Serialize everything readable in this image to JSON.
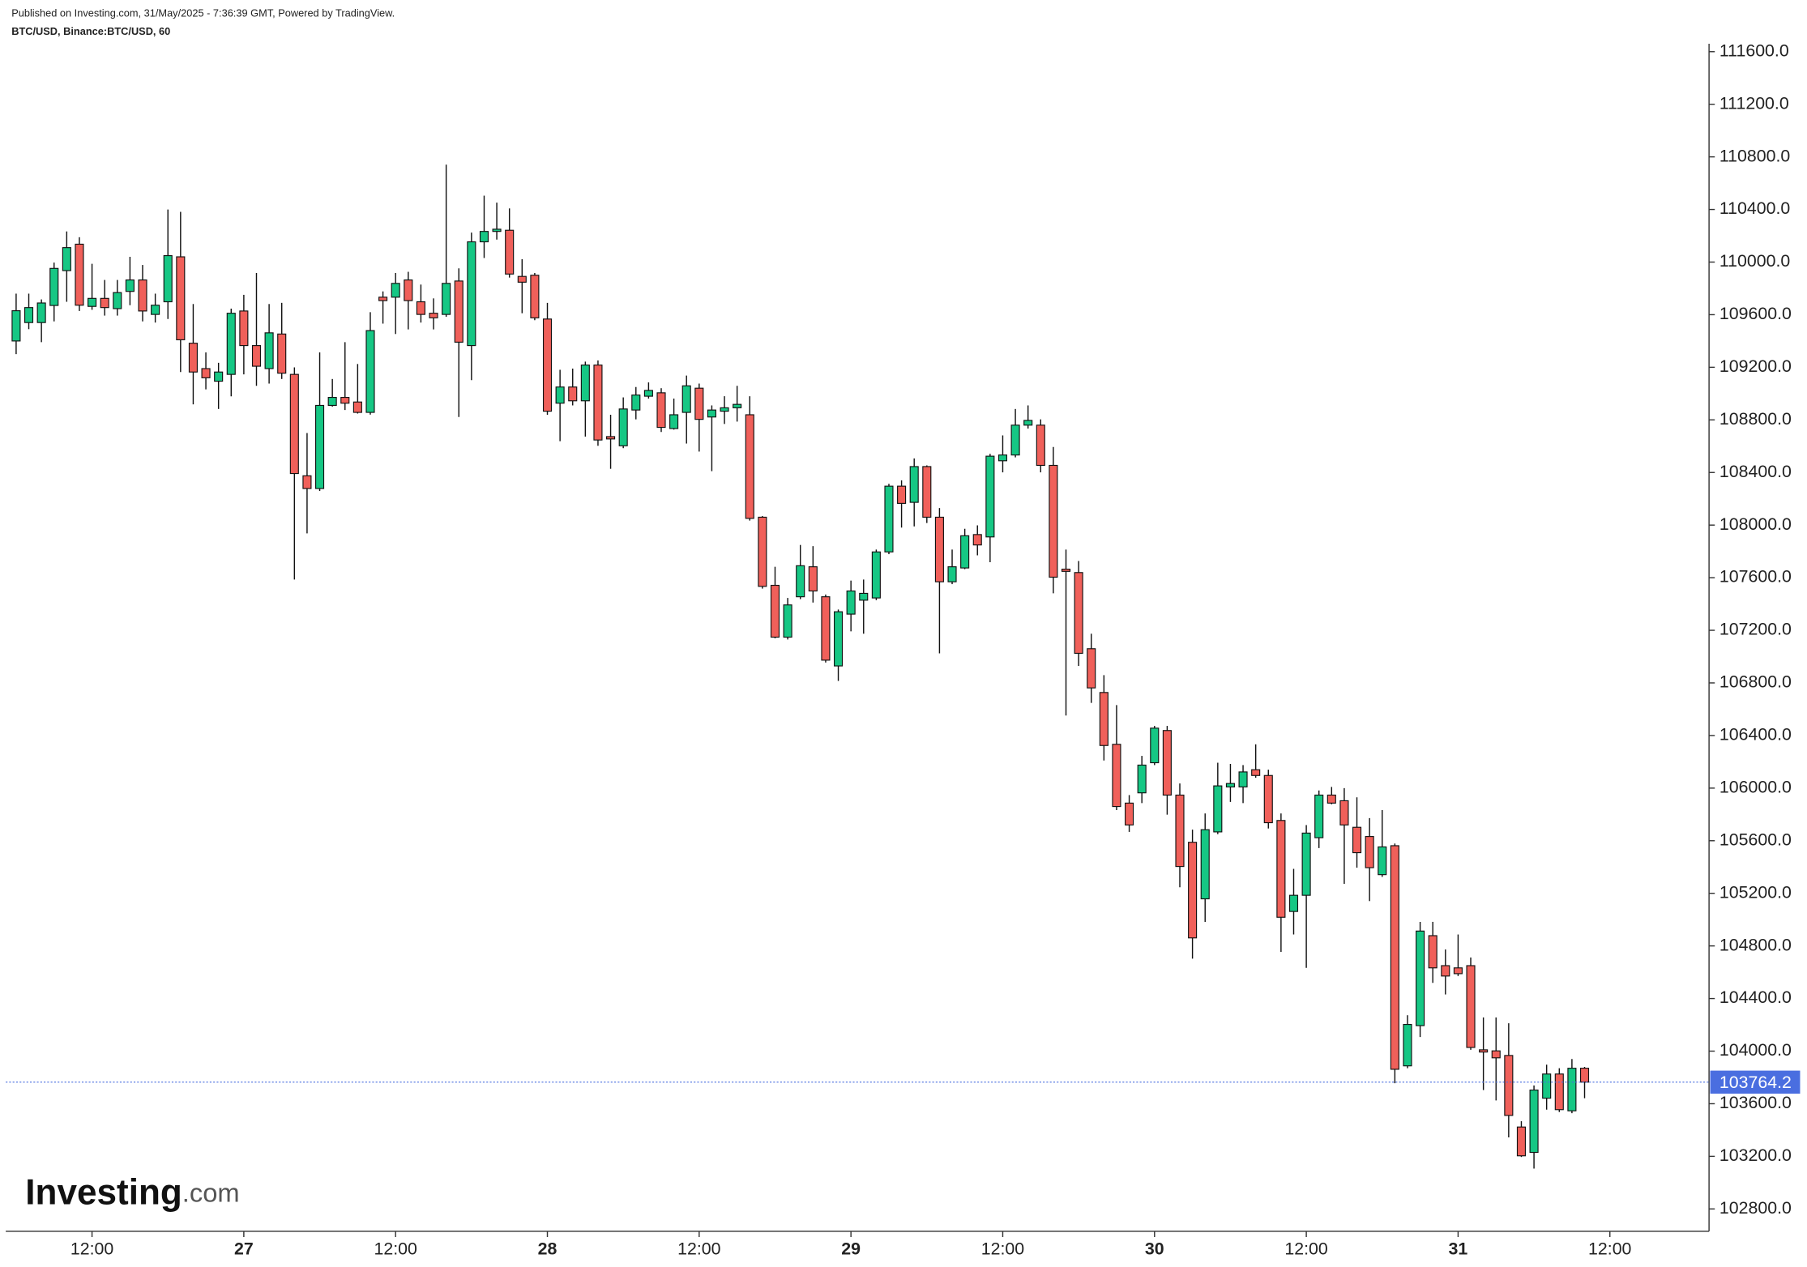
{
  "chart_data": {
    "type": "candlestick",
    "subtitle": "Published on Investing.com, 31/May/2025 - 7:36:39 GMT, Powered by TradingView.",
    "title": "BTC/USD, Binance:BTC/USD, 60",
    "up_color": "#16c784",
    "down_color": "#f0605a",
    "last_price_color": "#4a6ee0",
    "open": [
      109400,
      109540,
      109540,
      109670,
      109935,
      110136,
      109663,
      109724,
      109646,
      109777,
      109864,
      109602,
      109698,
      110040,
      109383,
      109190,
      109094,
      109146,
      109628,
      109365,
      109190,
      109453,
      109146,
      108375,
      108278,
      108910,
      108971,
      108936,
      108857,
      109733,
      109733,
      109864,
      109698,
      109611,
      109602,
      109856,
      109365,
      110154,
      110233,
      110242,
      109891,
      109900,
      109567,
      108927,
      109050,
      108945,
      109217,
      108673,
      108603,
      108875,
      108980,
      109006,
      108734,
      108857,
      109041,
      108822,
      108866,
      108892,
      108839,
      108060,
      107542,
      107148,
      107455,
      107683,
      107455,
      106929,
      107323,
      107429,
      107446,
      107796,
      108296,
      108173,
      108445,
      108060,
      107569,
      107674,
      107928,
      107910,
      108489,
      108533,
      108760,
      108760,
      108454,
      107665,
      107639,
      107060,
      106727,
      106333,
      105886,
      105964,
      106193,
      106438,
      105947,
      105588,
      105158,
      105667,
      106009,
      106009,
      106140,
      106096,
      105754,
      105062,
      105185,
      105623,
      105947,
      105904,
      105702,
      105632,
      105342,
      105562,
      103888,
      104194,
      104878,
      104650,
      104633,
      104650,
      104010,
      104002,
      103967,
      103423,
      103230,
      103642,
      103826,
      103546,
      103870
    ],
    "high": [
      109760,
      109760,
      109716,
      109996,
      110233,
      110189,
      109987,
      109864,
      109864,
      110040,
      109978,
      109760,
      110400,
      110382,
      109681,
      109313,
      109234,
      109646,
      109751,
      109917,
      109681,
      109690,
      109199,
      108700,
      109313,
      109111,
      109391,
      109225,
      109619,
      109777,
      109917,
      109926,
      109829,
      109724,
      110741,
      109952,
      110224,
      110505,
      110452,
      110408,
      110022,
      109917,
      109690,
      109181,
      109190,
      109243,
      109252,
      108839,
      108971,
      109050,
      109085,
      109041,
      108962,
      109137,
      109076,
      108910,
      108980,
      109059,
      108980,
      108069,
      107683,
      107446,
      107849,
      107840,
      107472,
      107358,
      107578,
      107586,
      107814,
      108314,
      108340,
      108507,
      108454,
      108130,
      107814,
      107972,
      107998,
      108542,
      108682,
      108883,
      108910,
      108804,
      108594,
      107814,
      107727,
      107174,
      106859,
      106631,
      105947,
      106245,
      106473,
      106473,
      106035,
      105684,
      105807,
      106193,
      106184,
      106175,
      106333,
      106140,
      105807,
      105386,
      105719,
      105982,
      106009,
      106000,
      105930,
      105772,
      105833,
      105579,
      104273,
      104983,
      104983,
      104773,
      104887,
      104712,
      104256,
      104256,
      104212,
      103467,
      103739,
      103897,
      103870,
      103940,
      103880
    ],
    "low": [
      109300,
      109490,
      109391,
      109549,
      109698,
      109628,
      109637,
      109593,
      109593,
      109672,
      109549,
      109540,
      109567,
      109164,
      108918,
      109032,
      108883,
      108979,
      109146,
      109059,
      109076,
      109111,
      107586,
      107937,
      108260,
      108901,
      108875,
      108848,
      108840,
      109532,
      109453,
      109488,
      109540,
      109488,
      109584,
      108822,
      109102,
      110031,
      110171,
      109882,
      109611,
      109558,
      108839,
      108638,
      108910,
      108673,
      108603,
      108428,
      108585,
      108804,
      108962,
      108708,
      108726,
      108620,
      108559,
      108410,
      108769,
      108787,
      108034,
      107517,
      107139,
      107130,
      107437,
      107411,
      106955,
      106815,
      107192,
      107174,
      107429,
      107779,
      107981,
      107990,
      108016,
      107025,
      107551,
      107665,
      107770,
      107718,
      108401,
      108515,
      108734,
      108401,
      107481,
      106552,
      106929,
      106648,
      106210,
      105833,
      105667,
      105886,
      106175,
      105798,
      105246,
      104703,
      104983,
      105650,
      105895,
      105886,
      106079,
      105693,
      104755,
      104887,
      104633,
      105544,
      105877,
      105272,
      105395,
      105141,
      105325,
      103756,
      103870,
      104107,
      104519,
      104431,
      104571,
      104010,
      103704,
      103625,
      103344,
      103195,
      103107,
      103555,
      103537,
      103528,
      103642
    ],
    "close": [
      109630,
      109654,
      109689,
      109952,
      110110,
      109672,
      109724,
      109654,
      109768,
      109864,
      109628,
      109672,
      110049,
      109409,
      109164,
      109120,
      109164,
      109611,
      109365,
      109208,
      109462,
      109155,
      108392,
      108278,
      108910,
      108971,
      108927,
      108857,
      109479,
      109707,
      109838,
      109707,
      109602,
      109576,
      109838,
      109391,
      110154,
      110233,
      110250,
      109909,
      109847,
      109576,
      108866,
      109050,
      108945,
      109217,
      108647,
      108655,
      108883,
      108989,
      109024,
      108743,
      108839,
      109059,
      108804,
      108875,
      108892,
      108918,
      108051,
      107534,
      107148,
      107393,
      107691,
      107499,
      106973,
      107341,
      107499,
      107481,
      107796,
      108296,
      108165,
      108445,
      108060,
      107569,
      107683,
      107919,
      107849,
      108524,
      108533,
      108760,
      108796,
      108454,
      107604,
      107648,
      107025,
      106762,
      106324,
      105860,
      105720,
      106175,
      106456,
      105947,
      105404,
      104861,
      105684,
      106017,
      106035,
      106123,
      106096,
      105737,
      105018,
      105185,
      105658,
      105947,
      105886,
      105720,
      105509,
      105395,
      105553,
      103862,
      104203,
      104913,
      104633,
      104571,
      104589,
      104028,
      103993,
      103949,
      103511,
      103204,
      103704,
      103826,
      103555,
      103870,
      103764.2
    ],
    "ylim": [
      102630,
      111660
    ],
    "yticks": [
      {
        "value": 102800,
        "label": "102800.0"
      },
      {
        "value": 103200,
        "label": "103200.0"
      },
      {
        "value": 103600,
        "label": "103600.0"
      },
      {
        "value": 104000,
        "label": "104000.0"
      },
      {
        "value": 104400,
        "label": "104400.0"
      },
      {
        "value": 104800,
        "label": "104800.0"
      },
      {
        "value": 105200,
        "label": "105200.0"
      },
      {
        "value": 105600,
        "label": "105600.0"
      },
      {
        "value": 106000,
        "label": "106000.0"
      },
      {
        "value": 106400,
        "label": "106400.0"
      },
      {
        "value": 106800,
        "label": "106800.0"
      },
      {
        "value": 107200,
        "label": "107200.0"
      },
      {
        "value": 107600,
        "label": "107600.0"
      },
      {
        "value": 108000,
        "label": "108000.0"
      },
      {
        "value": 108400,
        "label": "108400.0"
      },
      {
        "value": 108800,
        "label": "108800.0"
      },
      {
        "value": 109200,
        "label": "109200.0"
      },
      {
        "value": 109600,
        "label": "109600.0"
      },
      {
        "value": 110000,
        "label": "110000.0"
      },
      {
        "value": 110400,
        "label": "110400.0"
      },
      {
        "value": 110800,
        "label": "110800.0"
      },
      {
        "value": 111200,
        "label": "111200.0"
      },
      {
        "value": 111600,
        "label": "111600.0"
      }
    ],
    "xlim": [
      -0.82,
      133.84
    ],
    "xticks": [
      {
        "value": 6,
        "label": "12:00"
      },
      {
        "value": 18,
        "label": "27"
      },
      {
        "value": 30,
        "label": "12:00"
      },
      {
        "value": 42,
        "label": "28"
      },
      {
        "value": 54,
        "label": "12:00"
      },
      {
        "value": 66,
        "label": "29"
      },
      {
        "value": 78,
        "label": "12:00"
      },
      {
        "value": 90,
        "label": "30"
      },
      {
        "value": 102,
        "label": "12:00"
      },
      {
        "value": 114,
        "label": "31"
      },
      {
        "value": 126,
        "label": "12:00"
      }
    ]
  },
  "branding": {
    "wordmark": "Investing",
    "suffix": ".com"
  }
}
